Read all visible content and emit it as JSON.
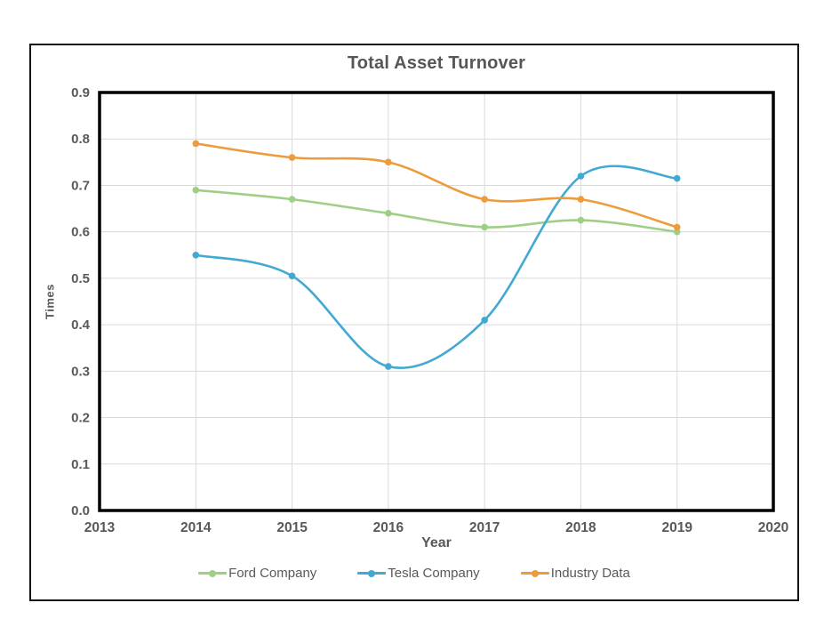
{
  "chart_data": {
    "type": "line",
    "title": "Total Asset Turnover",
    "xlabel": "Year",
    "ylabel": "Times",
    "x": [
      2014,
      2015,
      2016,
      2017,
      2018,
      2019
    ],
    "xticks": [
      2013,
      2014,
      2015,
      2016,
      2017,
      2018,
      2019,
      2020
    ],
    "xlim": [
      2013,
      2020
    ],
    "yticks": [
      0.0,
      0.1,
      0.2,
      0.3,
      0.4,
      0.5,
      0.6,
      0.7,
      0.8,
      0.9
    ],
    "ylim": [
      0,
      0.9
    ],
    "grid": true,
    "legend_position": "bottom",
    "smooth_lines": true,
    "series": [
      {
        "name": "Ford Company",
        "color": "#9FCF87",
        "values": [
          0.69,
          0.67,
          0.64,
          0.61,
          0.625,
          0.6
        ]
      },
      {
        "name": "Tesla Company",
        "color": "#41A9D2",
        "values": [
          0.55,
          0.505,
          0.31,
          0.41,
          0.72,
          0.715
        ]
      },
      {
        "name": "Industry Data",
        "color": "#EC9C3D",
        "values": [
          0.79,
          0.76,
          0.75,
          0.67,
          0.67,
          0.61
        ]
      }
    ],
    "style": {
      "text_color": "#595959",
      "gridline_color": "#D9D9D9",
      "plot_border_color": "#000000",
      "frame_border_color": "#141414",
      "background": "#FFFFFF"
    }
  }
}
